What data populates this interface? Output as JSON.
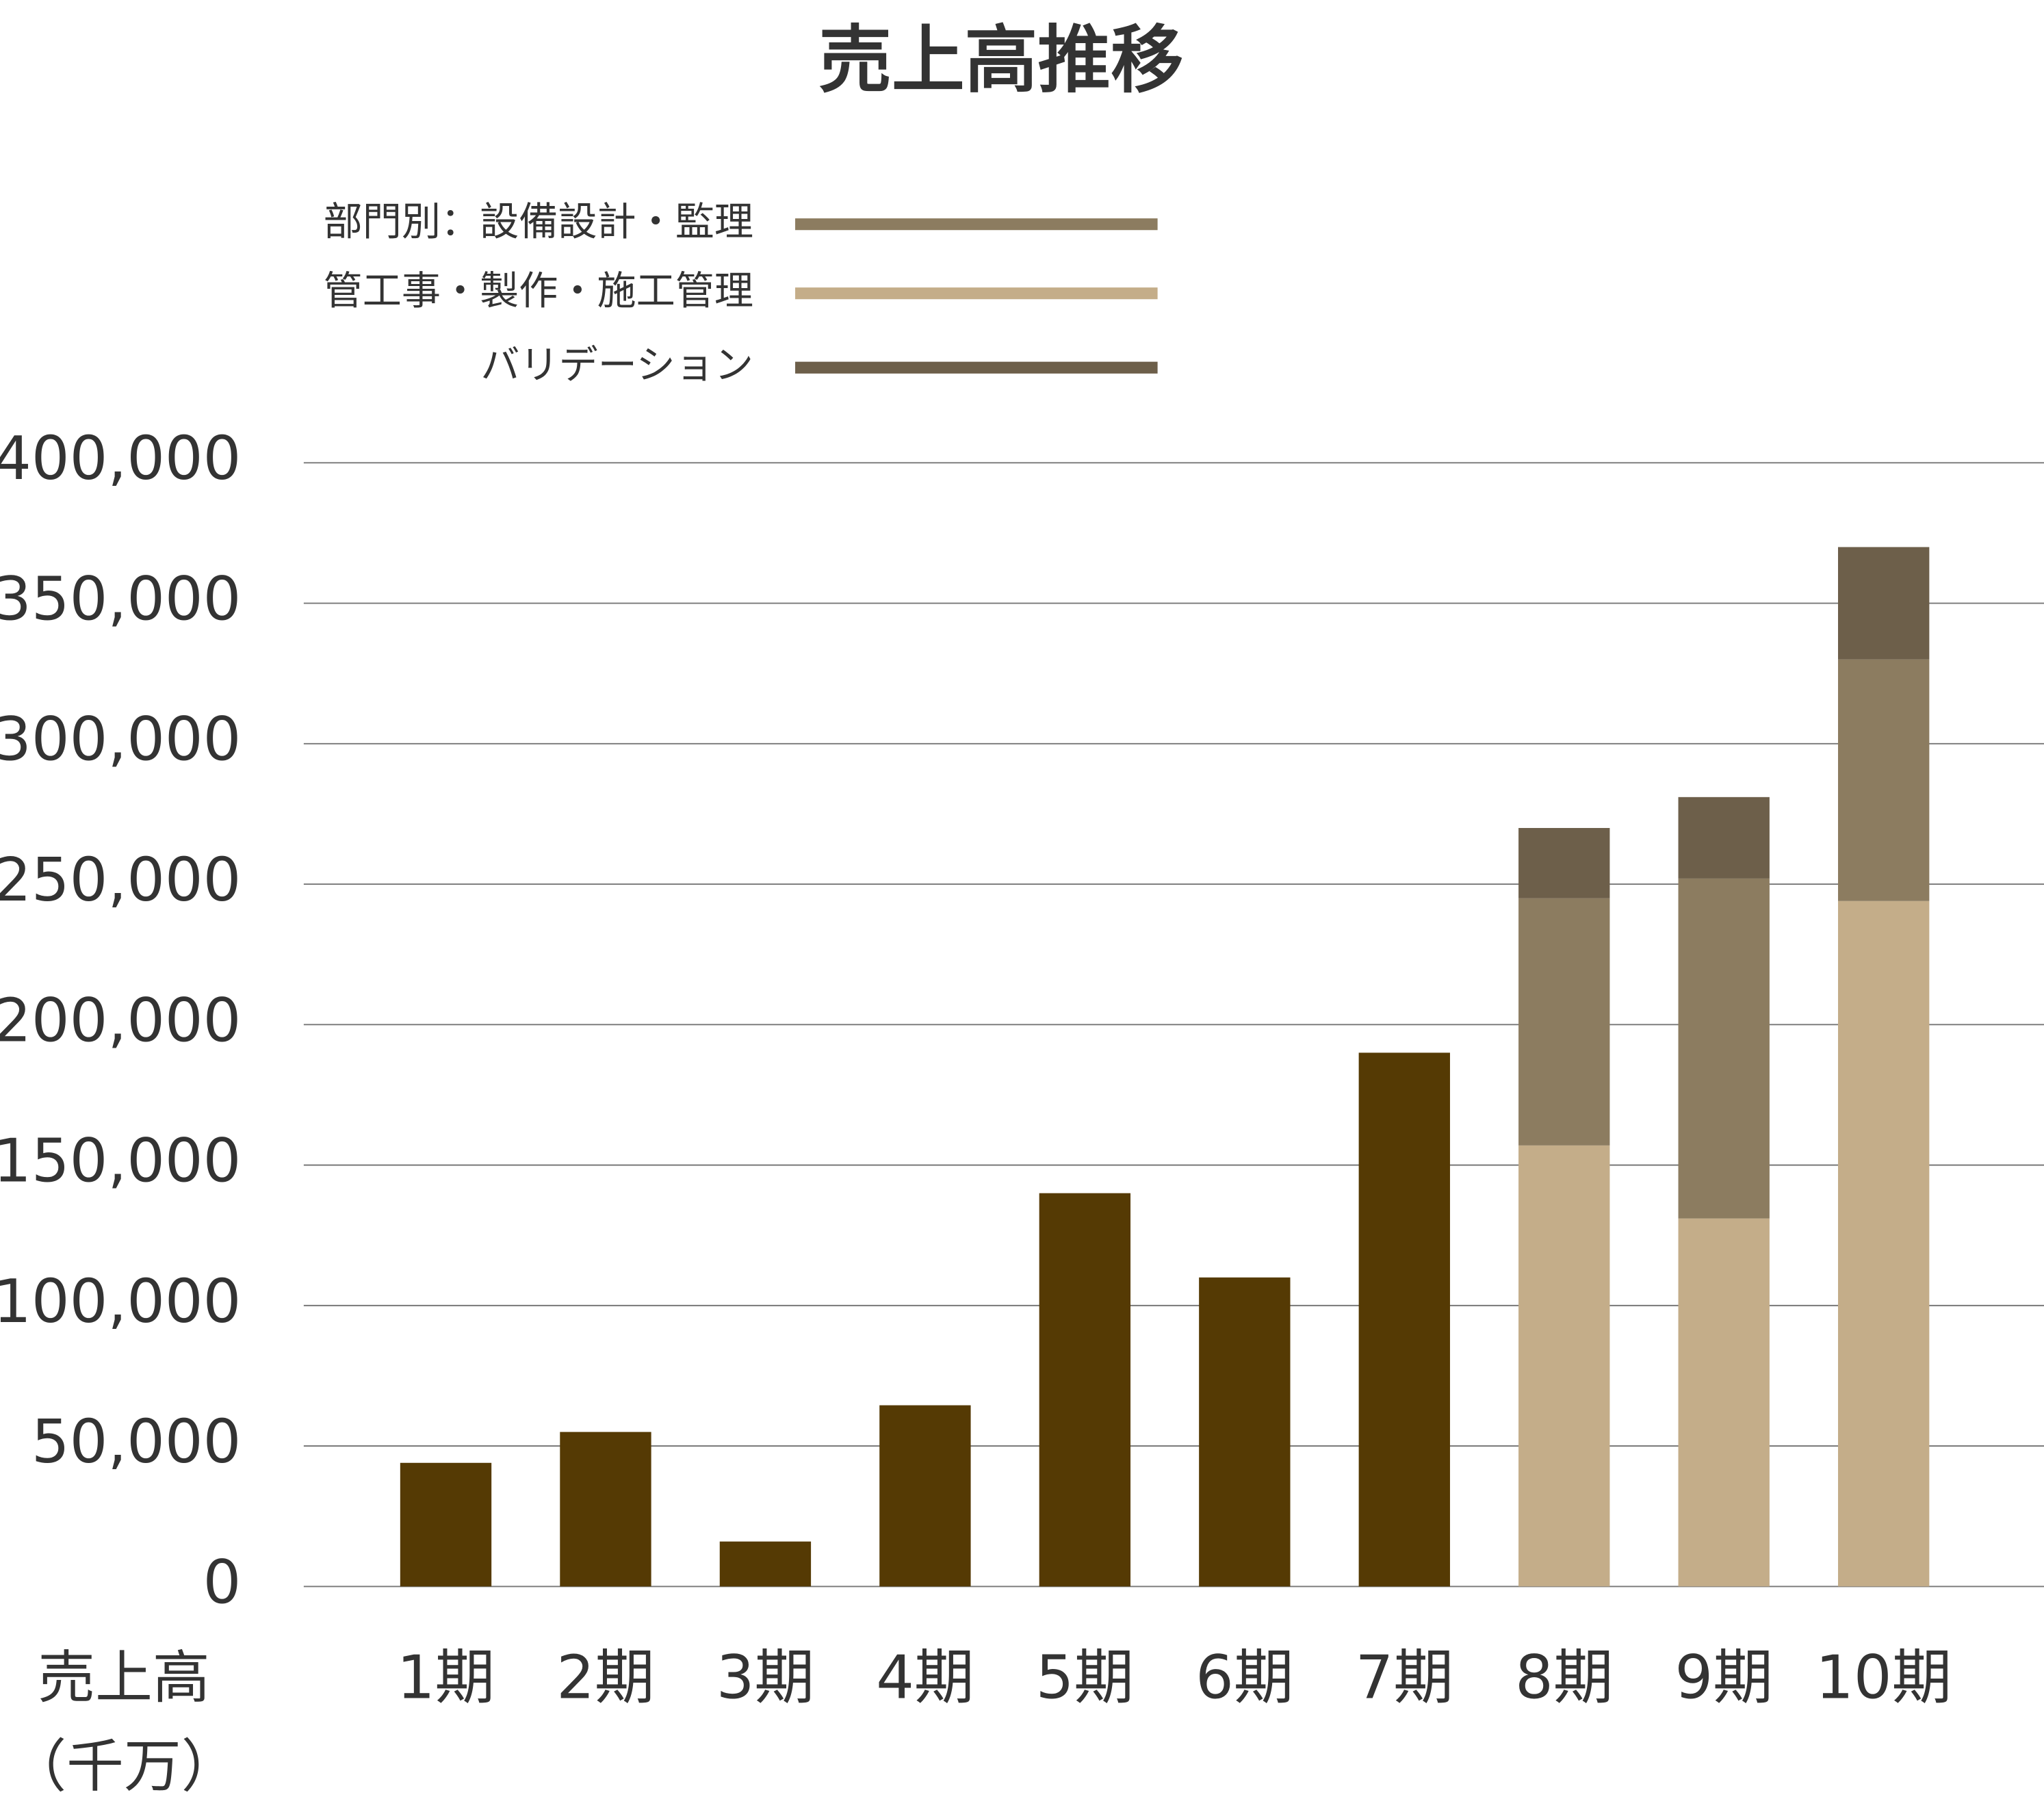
{
  "chart_data": {
    "type": "stacked_bar",
    "title": "売上高推移",
    "y_label": [
      "売上高",
      "（千万）"
    ],
    "categories": [
      "1期",
      "2期",
      "3期",
      "4期",
      "5期",
      "6期",
      "7期",
      "8期",
      "9期",
      "10期"
    ],
    "series": [
      {
        "color": "#553a04",
        "values": [
          44000,
          55000,
          16000,
          64500,
          140000,
          110000,
          190000,
          null,
          null,
          null
        ]
      },
      {
        "name": "部門別：設備設計・監理",
        "color": "#8c7c60",
        "values": [
          null,
          null,
          null,
          null,
          null,
          null,
          null,
          88000,
          121000,
          86000
        ]
      },
      {
        "name": "管工事・製作・施工管理",
        "color": "#c4ad89",
        "values": [
          null,
          null,
          null,
          null,
          null,
          null,
          null,
          157000,
          131000,
          244000
        ]
      },
      {
        "name": "バリデーション",
        "color": "#6d5f4a",
        "values": [
          null,
          null,
          null,
          null,
          null,
          null,
          null,
          25000,
          29000,
          40000
        ]
      }
    ],
    "ylim": [
      0,
      400000
    ],
    "yticks": [
      0,
      {
        "value": 50000,
        "label": "50,000"
      },
      {
        "value": 100000,
        "label": "100,000"
      },
      {
        "value": 150000,
        "label": "150,000"
      },
      {
        "value": 200000,
        "label": "200,000"
      },
      {
        "value": 250000,
        "label": "250,000"
      },
      {
        "value": 300000,
        "label": "300,000"
      },
      {
        "value": 350000,
        "label": "350,000"
      },
      {
        "value": 400000,
        "label": "400,000"
      }
    ],
    "grid": true
  }
}
